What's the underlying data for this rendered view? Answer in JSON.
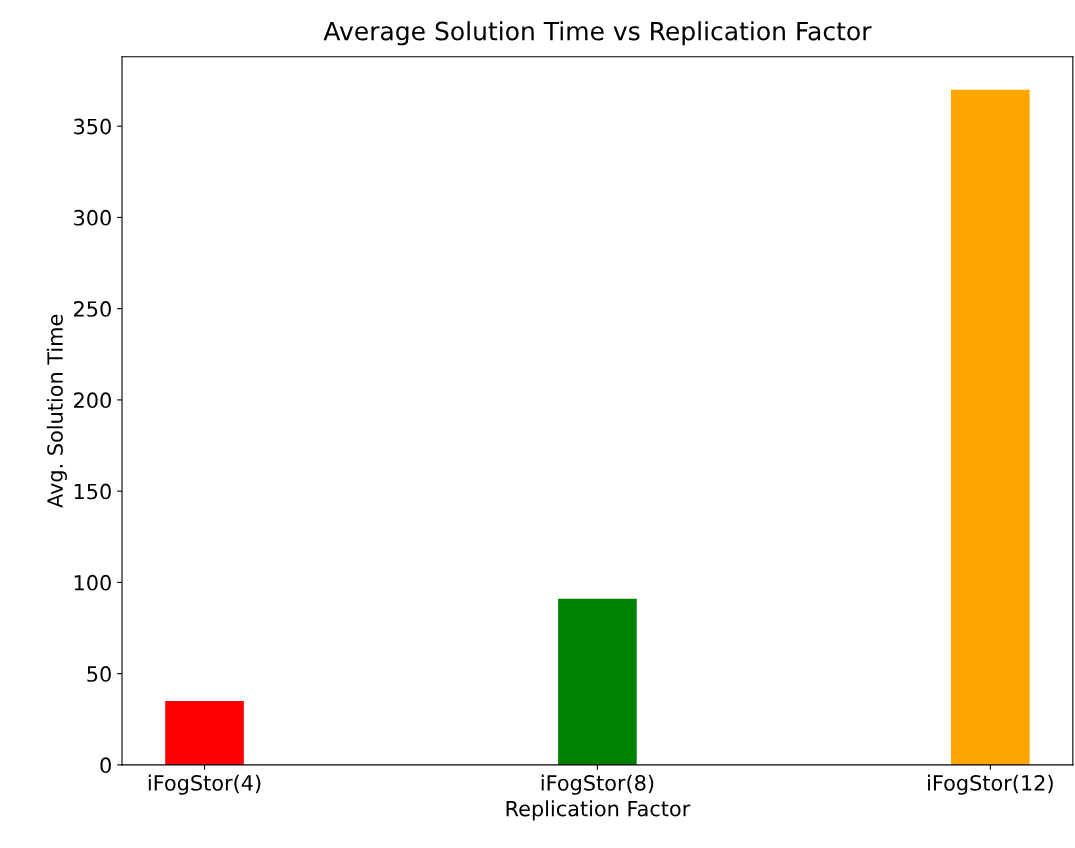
{
  "chart_data": {
    "type": "bar",
    "title": "Average Solution Time vs Replication Factor",
    "xlabel": "Replication Factor",
    "ylabel": "Avg. Solution Time",
    "categories": [
      "iFogStor(4)",
      "iFogStor(8)",
      "iFogStor(12)"
    ],
    "values": [
      35,
      91,
      370
    ],
    "colors": [
      "#ff0000",
      "#008000",
      "#ffa500"
    ],
    "ylim": [
      0,
      388
    ],
    "yticks": [
      0,
      50,
      100,
      150,
      200,
      250,
      300,
      350
    ],
    "grid": false
  }
}
